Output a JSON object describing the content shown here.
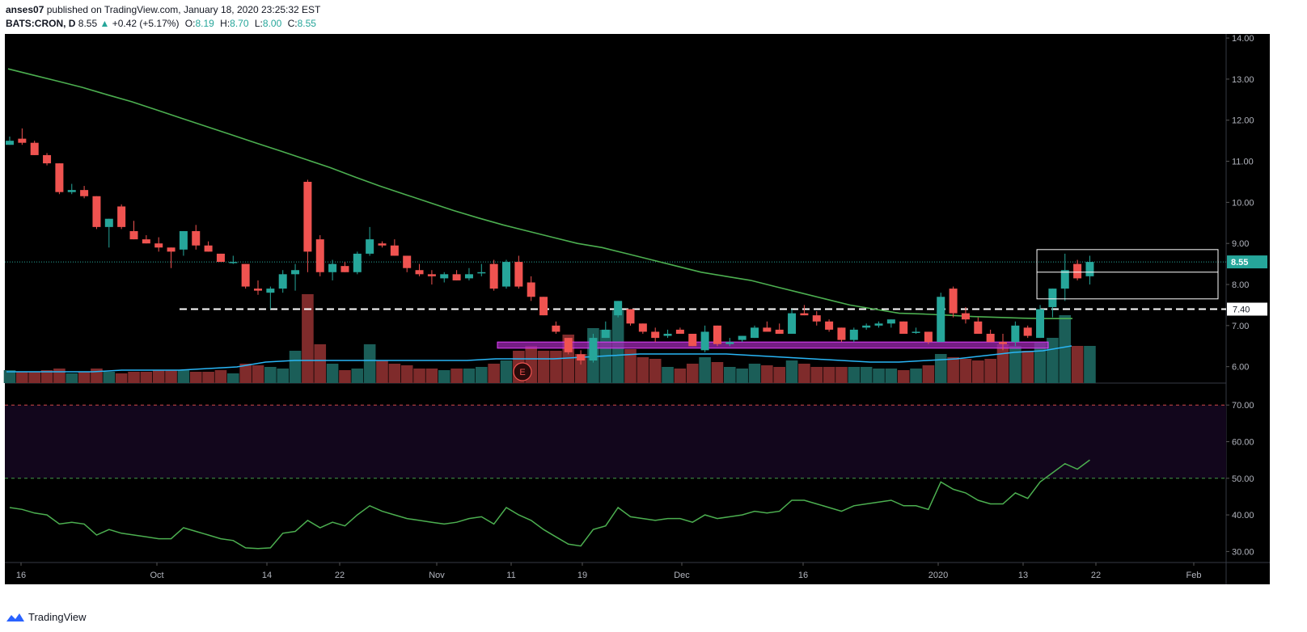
{
  "header": {
    "author": "anses07",
    "published_text": "published on TradingView.com, January 18, 2020 23:25:32 EST",
    "symbol": "BATS:CRON, D",
    "last": "8.55",
    "change_arrow": "▲",
    "change": "+0.42 (+5.17%)",
    "o_label": "O:",
    "o": "8.19",
    "h_label": "H:",
    "h": "8.70",
    "l_label": "L:",
    "l": "8.00",
    "c_label": "C:",
    "c": "8.55"
  },
  "footer": {
    "brand": "TradingView"
  },
  "colors": {
    "background": "#000000",
    "up": "#26a69a",
    "down": "#ef5350",
    "sma": "#4caf50",
    "volume_ma": "#29b6f6",
    "rsi": "#4caf50",
    "support_zone": "#9c27b0",
    "axis_text": "#b2b5be"
  },
  "chart_data": {
    "type": "candlestick",
    "title": "BATS:CRON, D",
    "price_axis": {
      "ticks": [
        "6.00",
        "7.00",
        "8.00",
        "9.00",
        "10.00",
        "11.00",
        "12.00",
        "13.00",
        "14.00"
      ],
      "ylim": [
        5.6,
        14.1
      ]
    },
    "rsi_axis": {
      "ticks": [
        "30.00",
        "40.00",
        "50.00",
        "60.00",
        "70.00"
      ],
      "ylim": [
        27,
        76
      ]
    },
    "x_ticks": [
      "16",
      "Oct",
      "14",
      "22",
      "Nov",
      "11",
      "19",
      "Dec",
      "16",
      "2020",
      "13",
      "22",
      "Feb"
    ],
    "last_price_label": "8.55",
    "level_label": "7.40",
    "level": 7.4,
    "candles": [
      [
        11.4,
        11.6,
        11.4,
        11.5
      ],
      [
        11.55,
        11.8,
        11.4,
        11.45
      ],
      [
        11.45,
        11.5,
        11.15,
        11.15
      ],
      [
        11.15,
        11.2,
        10.9,
        10.95
      ],
      [
        10.95,
        10.95,
        10.2,
        10.25
      ],
      [
        10.25,
        10.45,
        10.2,
        10.3
      ],
      [
        10.3,
        10.4,
        10.1,
        10.15
      ],
      [
        10.15,
        10.15,
        9.35,
        9.4
      ],
      [
        9.4,
        9.6,
        8.9,
        9.6
      ],
      [
        9.9,
        9.95,
        9.35,
        9.4
      ],
      [
        9.3,
        9.55,
        9.1,
        9.1
      ],
      [
        9.1,
        9.2,
        9.0,
        9.0
      ],
      [
        9.0,
        9.15,
        8.8,
        8.9
      ],
      [
        8.9,
        8.9,
        8.4,
        8.8
      ],
      [
        8.85,
        9.3,
        8.7,
        9.3
      ],
      [
        9.3,
        9.45,
        8.85,
        8.95
      ],
      [
        8.95,
        9.05,
        8.8,
        8.8
      ],
      [
        8.75,
        8.75,
        8.55,
        8.55
      ],
      [
        8.55,
        8.7,
        8.5,
        8.55
      ],
      [
        8.5,
        8.5,
        7.9,
        7.95
      ],
      [
        7.9,
        8.1,
        7.75,
        7.85
      ],
      [
        7.8,
        7.95,
        7.4,
        7.9
      ],
      [
        7.9,
        8.35,
        7.8,
        8.25
      ],
      [
        8.25,
        8.5,
        7.85,
        8.35
      ],
      [
        10.5,
        10.55,
        8.3,
        8.8
      ],
      [
        9.1,
        9.2,
        8.2,
        8.3
      ],
      [
        8.3,
        8.6,
        8.1,
        8.5
      ],
      [
        8.45,
        8.55,
        8.3,
        8.3
      ],
      [
        8.3,
        8.8,
        8.25,
        8.75
      ],
      [
        8.75,
        9.4,
        8.7,
        9.1
      ],
      [
        9.0,
        9.05,
        8.9,
        8.95
      ],
      [
        8.95,
        9.1,
        8.7,
        8.7
      ],
      [
        8.7,
        8.7,
        8.3,
        8.4
      ],
      [
        8.35,
        8.5,
        8.2,
        8.25
      ],
      [
        8.25,
        8.35,
        8.0,
        8.2
      ],
      [
        8.15,
        8.3,
        8.05,
        8.25
      ],
      [
        8.25,
        8.35,
        8.1,
        8.1
      ],
      [
        8.15,
        8.4,
        8.1,
        8.25
      ],
      [
        8.3,
        8.5,
        8.2,
        8.3
      ],
      [
        8.5,
        8.6,
        7.85,
        7.9
      ],
      [
        7.95,
        8.6,
        7.9,
        8.55
      ],
      [
        8.55,
        8.7,
        7.9,
        7.95
      ],
      [
        8.05,
        8.2,
        7.6,
        7.7
      ],
      [
        7.7,
        7.7,
        7.25,
        7.25
      ],
      [
        7.0,
        7.1,
        6.8,
        6.85
      ],
      [
        6.7,
        6.7,
        6.3,
        6.35
      ],
      [
        6.3,
        6.4,
        6.05,
        6.15
      ],
      [
        6.15,
        6.8,
        6.1,
        6.7
      ],
      [
        6.7,
        7.1,
        6.7,
        6.9
      ],
      [
        7.25,
        7.6,
        7.2,
        7.6
      ],
      [
        7.4,
        7.4,
        7.0,
        7.05
      ],
      [
        7.05,
        7.05,
        6.8,
        6.85
      ],
      [
        6.85,
        6.95,
        6.6,
        6.7
      ],
      [
        6.75,
        6.9,
        6.7,
        6.8
      ],
      [
        6.9,
        6.95,
        6.8,
        6.8
      ],
      [
        6.8,
        6.8,
        6.5,
        6.5
      ],
      [
        6.4,
        7.0,
        6.35,
        6.85
      ],
      [
        7.0,
        7.0,
        6.5,
        6.55
      ],
      [
        6.55,
        6.7,
        6.5,
        6.6
      ],
      [
        6.65,
        6.75,
        6.6,
        6.75
      ],
      [
        6.7,
        7.0,
        6.7,
        6.95
      ],
      [
        6.95,
        7.1,
        6.9,
        6.85
      ],
      [
        6.9,
        7.05,
        6.8,
        6.8
      ],
      [
        6.8,
        7.4,
        6.8,
        7.3
      ],
      [
        7.3,
        7.5,
        7.25,
        7.25
      ],
      [
        7.25,
        7.35,
        7.0,
        7.1
      ],
      [
        7.1,
        7.15,
        6.85,
        6.9
      ],
      [
        6.95,
        6.95,
        6.6,
        6.65
      ],
      [
        6.65,
        6.95,
        6.6,
        6.9
      ],
      [
        6.95,
        7.05,
        6.9,
        7.0
      ],
      [
        7.0,
        7.1,
        6.95,
        7.05
      ],
      [
        7.05,
        7.15,
        6.95,
        7.15
      ],
      [
        7.1,
        7.1,
        6.8,
        6.8
      ],
      [
        6.85,
        6.95,
        6.8,
        6.85
      ],
      [
        6.85,
        6.85,
        6.55,
        6.6
      ],
      [
        6.6,
        7.8,
        6.6,
        7.7
      ],
      [
        7.9,
        7.95,
        7.2,
        7.3
      ],
      [
        7.3,
        7.45,
        7.05,
        7.15
      ],
      [
        7.1,
        7.2,
        6.8,
        6.8
      ],
      [
        6.8,
        6.9,
        6.6,
        6.6
      ],
      [
        6.6,
        6.8,
        6.4,
        6.55
      ],
      [
        6.6,
        7.1,
        6.5,
        7.0
      ],
      [
        6.95,
        7.0,
        6.7,
        6.75
      ],
      [
        6.7,
        7.5,
        6.7,
        7.4
      ],
      [
        7.45,
        7.9,
        7.2,
        7.9
      ],
      [
        7.9,
        8.75,
        7.6,
        8.35
      ],
      [
        8.5,
        8.6,
        8.1,
        8.15
      ],
      [
        8.2,
        8.7,
        8.0,
        8.55
      ]
    ],
    "volume": [
      0.08,
      0.07,
      0.07,
      0.08,
      0.09,
      0.06,
      0.07,
      0.09,
      0.07,
      0.06,
      0.07,
      0.07,
      0.08,
      0.08,
      0.08,
      0.07,
      0.07,
      0.08,
      0.06,
      0.12,
      0.11,
      0.1,
      0.09,
      0.2,
      0.55,
      0.24,
      0.12,
      0.08,
      0.09,
      0.24,
      0.14,
      0.12,
      0.11,
      0.09,
      0.09,
      0.08,
      0.09,
      0.09,
      0.1,
      0.12,
      0.14,
      0.2,
      0.23,
      0.2,
      0.2,
      0.3,
      0.18,
      0.34,
      0.33,
      0.45,
      0.21,
      0.16,
      0.15,
      0.1,
      0.09,
      0.12,
      0.16,
      0.13,
      0.1,
      0.09,
      0.12,
      0.11,
      0.1,
      0.14,
      0.12,
      0.1,
      0.1,
      0.1,
      0.1,
      0.1,
      0.09,
      0.09,
      0.08,
      0.09,
      0.11,
      0.18,
      0.16,
      0.15,
      0.14,
      0.15,
      0.24,
      0.23,
      0.2,
      0.25,
      0.28,
      0.42,
      0.23,
      0.23
    ],
    "sma": [
      13.25,
      13.1,
      12.95,
      12.8,
      12.62,
      12.45,
      12.25,
      12.05,
      11.85,
      11.65,
      11.45,
      11.25,
      11.05,
      10.85,
      10.62,
      10.4,
      10.2,
      10.0,
      9.8,
      9.62,
      9.45,
      9.3,
      9.15,
      9.0,
      8.9,
      8.75,
      8.6,
      8.45,
      8.3,
      8.2,
      8.1,
      7.95,
      7.8,
      7.65,
      7.5,
      7.4,
      7.3,
      7.28,
      7.25,
      7.22,
      7.2,
      7.18,
      7.17,
      7.17
    ],
    "volume_ma": [
      0.07,
      0.07,
      0.07,
      0.07,
      0.08,
      0.08,
      0.08,
      0.09,
      0.1,
      0.13,
      0.14,
      0.14,
      0.14,
      0.14,
      0.14,
      0.14,
      0.14,
      0.15,
      0.15,
      0.15,
      0.16,
      0.17,
      0.18,
      0.18,
      0.18,
      0.18,
      0.17,
      0.16,
      0.15,
      0.14,
      0.13,
      0.13,
      0.14,
      0.15,
      0.17,
      0.19,
      0.2,
      0.23
    ],
    "rsi": [
      42,
      41.5,
      40.5,
      40,
      37.5,
      38,
      37.5,
      34.5,
      36,
      35,
      34.5,
      34,
      33.5,
      33.5,
      36.5,
      35.5,
      34.5,
      33.5,
      33,
      31,
      30.8,
      31,
      35,
      35.5,
      38.5,
      36.5,
      38,
      37,
      40,
      42.5,
      41,
      40,
      39,
      38.5,
      38,
      37.5,
      38,
      39,
      39.5,
      37.5,
      42,
      40,
      38.5,
      36,
      34,
      32,
      31.5,
      36,
      37,
      42,
      39.5,
      39,
      38.5,
      39,
      39,
      38,
      40,
      39,
      39.5,
      40,
      41,
      40.5,
      41,
      44,
      44,
      43,
      42,
      41,
      42.5,
      43,
      43.5,
      44,
      42.5,
      42.5,
      41.5,
      49,
      47,
      46,
      44,
      43,
      43,
      46,
      44.5,
      49,
      51.5,
      54,
      52.5,
      55
    ],
    "rsi_bands": {
      "upper": 70,
      "lower": 50
    },
    "support_zone": [
      6.45,
      6.6
    ]
  }
}
